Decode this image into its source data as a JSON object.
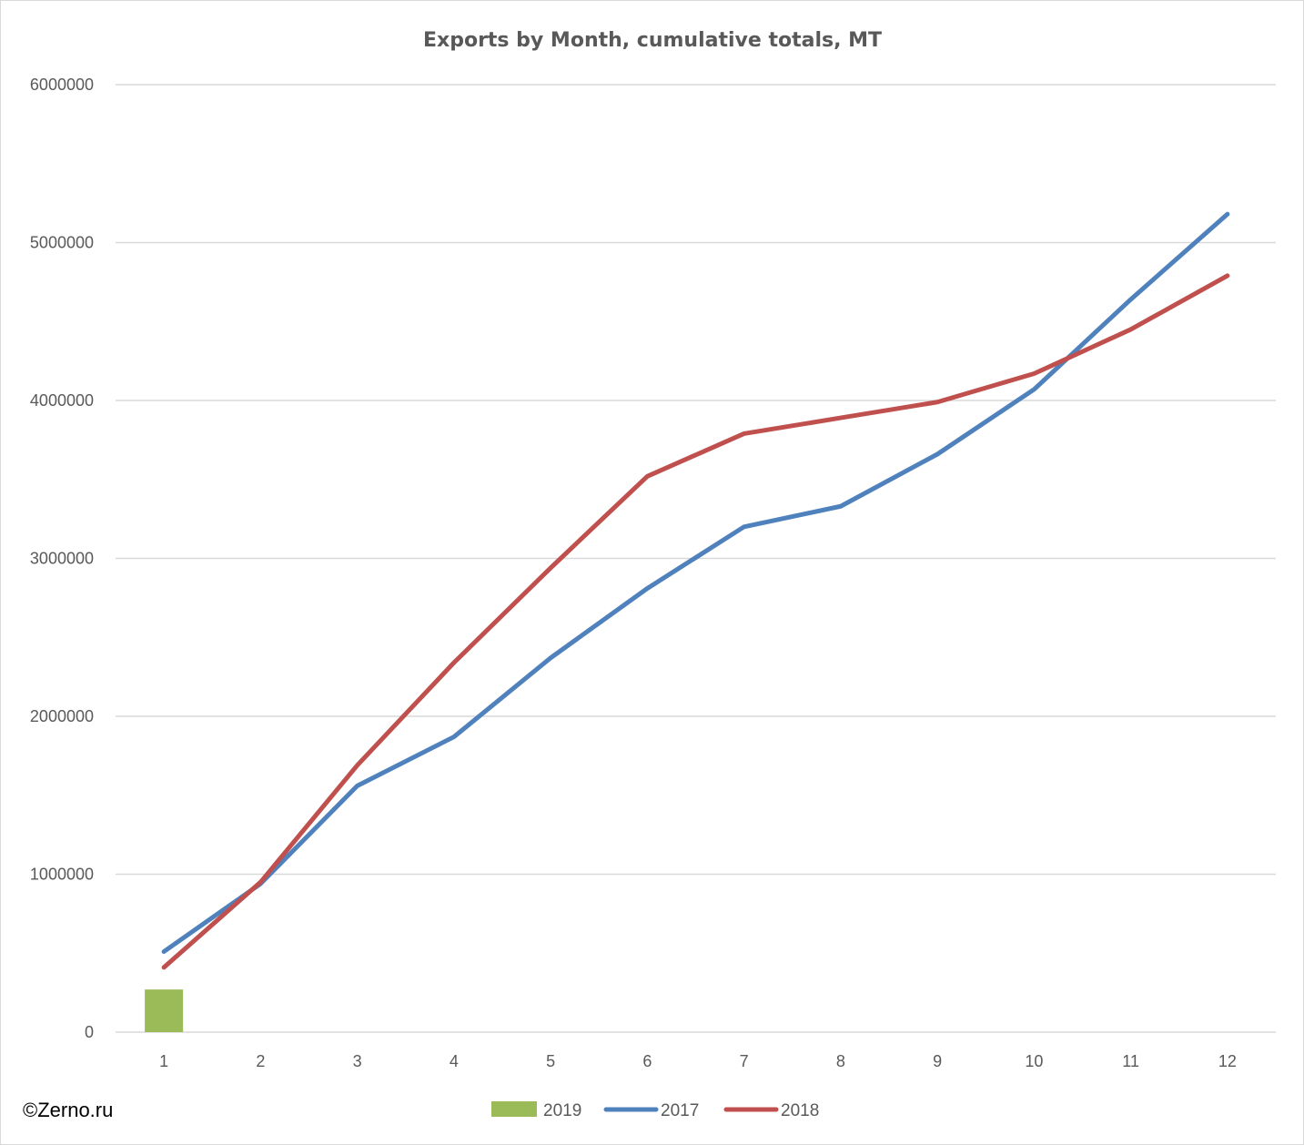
{
  "chart_data": {
    "type": "line",
    "title": "Exports by Month, cumulative totals, MT",
    "xlabel": "",
    "ylabel": "",
    "categories": [
      "1",
      "2",
      "3",
      "4",
      "5",
      "6",
      "7",
      "8",
      "9",
      "10",
      "11",
      "12"
    ],
    "ylim": [
      0,
      6000000
    ],
    "yticks": [
      "0",
      "1000000",
      "2000000",
      "3000000",
      "4000000",
      "5000000",
      "6000000"
    ],
    "grid": true,
    "legend_position": "bottom",
    "series": [
      {
        "name": "2019",
        "kind": "bar",
        "color": "#9bbb59",
        "values": [
          270000,
          null,
          null,
          null,
          null,
          null,
          null,
          null,
          null,
          null,
          null,
          null
        ]
      },
      {
        "name": "2017",
        "kind": "line",
        "color": "#4f81bd",
        "values": [
          510000,
          940000,
          1560000,
          1870000,
          2370000,
          2810000,
          3200000,
          3330000,
          3660000,
          4070000,
          4640000,
          5180000
        ]
      },
      {
        "name": "2018",
        "kind": "line",
        "color": "#c0504d",
        "values": [
          410000,
          950000,
          1690000,
          2340000,
          2940000,
          3520000,
          3790000,
          3890000,
          3990000,
          4170000,
          4450000,
          4790000
        ]
      }
    ]
  },
  "watermark": "©Zerno.ru"
}
